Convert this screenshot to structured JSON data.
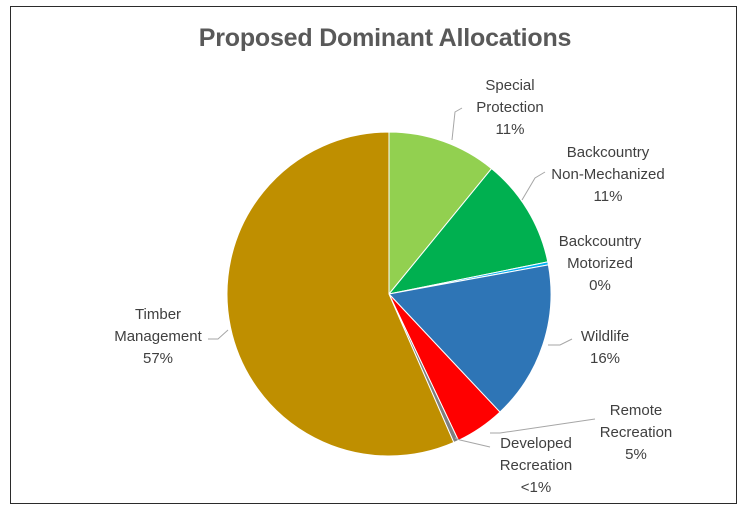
{
  "chart_data": {
    "type": "pie",
    "title": "Proposed Dominant Allocations",
    "slices": [
      {
        "label_lines": [
          "Special",
          "Protection"
        ],
        "value_label": "11%",
        "value": 11,
        "color": "#92d050"
      },
      {
        "label_lines": [
          "Backcountry",
          "Non-Mechanized"
        ],
        "value_label": "11%",
        "value": 11,
        "color": "#00b050"
      },
      {
        "label_lines": [
          "Backcountry",
          "Motorized"
        ],
        "value_label": "0%",
        "value": 0.3,
        "color": "#00b0f0"
      },
      {
        "label_lines": [
          "Wildlife"
        ],
        "value_label": "16%",
        "value": 16,
        "color": "#2e75b6"
      },
      {
        "label_lines": [
          "Remote",
          "Recreation"
        ],
        "value_label": "5%",
        "value": 5,
        "color": "#ff0000"
      },
      {
        "label_lines": [
          "Developed",
          "Recreation"
        ],
        "value_label": "<1%",
        "value": 0.5,
        "color": "#7f7f7f"
      },
      {
        "label_lines": [
          "Timber",
          "Management"
        ],
        "value_label": "57%",
        "value": 57,
        "color": "#bf8f00"
      }
    ]
  }
}
